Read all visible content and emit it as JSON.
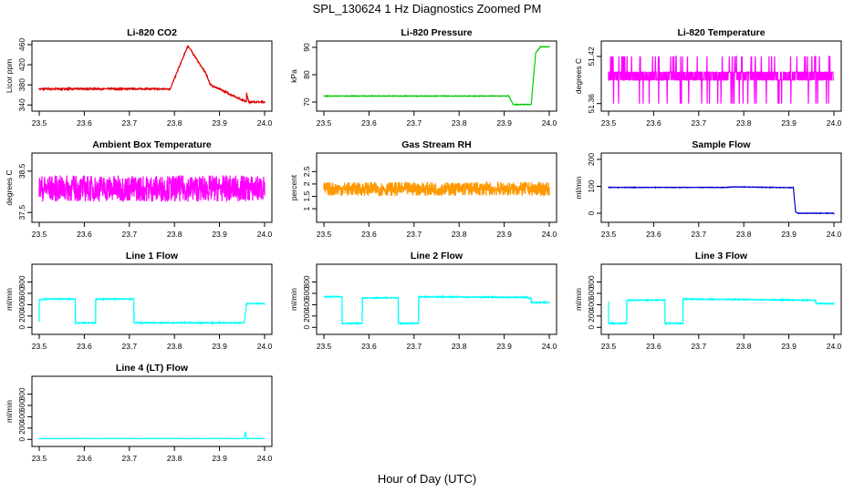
{
  "figure": {
    "title": "SPL_130624 1 Hz Diagnostics Zoomed PM",
    "xlabel": "Hour of Day (UTC)"
  },
  "chart_data": [
    {
      "type": "line",
      "title": "Li-820 CO2",
      "ylabel": "Licor ppm",
      "color": "#dd0000",
      "xlim": [
        23.5,
        24.0
      ],
      "ylim": [
        335,
        460
      ],
      "xticks": [
        23.5,
        23.6,
        23.7,
        23.8,
        23.9,
        24.0
      ],
      "yticks": [
        340,
        380,
        420,
        460
      ],
      "noise": 1.5,
      "x": [
        23.5,
        23.79,
        23.79,
        23.83,
        23.83,
        23.87,
        23.87,
        23.88,
        23.88,
        23.955,
        23.96,
        23.96,
        23.965,
        23.965,
        24.0
      ],
      "y": [
        372,
        372,
        371,
        458,
        458,
        402,
        402,
        380,
        380,
        348,
        347,
        364,
        345,
        346,
        346
      ]
    },
    {
      "type": "line",
      "title": "Li-820 Pressure",
      "ylabel": "kPa",
      "color": "#00cc00",
      "xlim": [
        23.5,
        24.0
      ],
      "ylim": [
        68,
        91
      ],
      "xticks": [
        23.5,
        23.6,
        23.7,
        23.8,
        23.9,
        24.0
      ],
      "yticks": [
        70,
        80,
        90
      ],
      "noise": 0.1,
      "x": [
        23.5,
        23.91,
        23.92,
        23.96,
        23.965,
        23.97,
        23.98,
        24.0
      ],
      "y": [
        72.2,
        72.2,
        69.1,
        69.1,
        79,
        88,
        90.2,
        90.2
      ]
    },
    {
      "type": "line",
      "title": "Li-820 Temperature",
      "ylabel": "degrees C",
      "color": "#ff00ff",
      "xlim": [
        23.5,
        24.0
      ],
      "ylim": [
        51.355,
        51.435
      ],
      "xticks": [
        23.5,
        23.6,
        23.7,
        23.8,
        23.9,
        24.0
      ],
      "yticks": [
        51.36,
        51.42
      ],
      "noise": 0,
      "x": [
        23.5,
        24.0
      ],
      "y": [
        51.385,
        51.395
      ]
    },
    {
      "type": "line",
      "title": "Ambient Box Temperature",
      "ylabel": "degrees C",
      "color": "#ff00ff",
      "xlim": [
        23.5,
        24.0
      ],
      "ylim": [
        37.35,
        38.85
      ],
      "xticks": [
        23.5,
        23.6,
        23.7,
        23.8,
        23.9,
        24.0
      ],
      "yticks": [
        37.5,
        38.5
      ],
      "noise": 0.32,
      "x": [
        23.5,
        24.0
      ],
      "y": [
        38.08,
        38.08
      ]
    },
    {
      "type": "line",
      "title": "Gas Stream RH",
      "ylabel": "percent",
      "color": "#ff9900",
      "xlim": [
        23.5,
        24.0
      ],
      "ylim": [
        0.6,
        3.1
      ],
      "xticks": [
        23.5,
        23.6,
        23.7,
        23.8,
        23.9,
        24.0
      ],
      "yticks": [
        1.0,
        1.5,
        2.0,
        2.5
      ],
      "noise": 0.28,
      "x": [
        23.5,
        24.0
      ],
      "y": [
        1.8,
        1.8
      ]
    },
    {
      "type": "line",
      "title": "Sample Flow",
      "ylabel": "ml/min",
      "color": "#0000cc",
      "xlim": [
        23.5,
        24.0
      ],
      "ylim": [
        -20,
        210
      ],
      "xticks": [
        23.5,
        23.6,
        23.7,
        23.8,
        23.9,
        24.0
      ],
      "yticks": [
        0,
        100,
        200
      ],
      "noise": 1,
      "x": [
        23.5,
        23.76,
        23.78,
        23.91,
        23.915,
        23.92,
        24.0
      ],
      "y": [
        96,
        96,
        98,
        95,
        5,
        0,
        0
      ]
    },
    {
      "type": "line",
      "title": "Line 1 Flow",
      "ylabel": "ml/min",
      "color": "#00ffff",
      "xlim": [
        23.5,
        24.0
      ],
      "ylim": [
        -60,
        1050
      ],
      "xticks": [
        23.5,
        23.6,
        23.7,
        23.8,
        23.9,
        24.0
      ],
      "yticks": [
        0,
        200,
        400,
        600,
        800
      ],
      "noise": 8,
      "x": [
        23.5,
        23.5,
        23.51,
        23.58,
        23.58,
        23.625,
        23.625,
        23.71,
        23.71,
        23.955,
        23.955,
        23.96,
        23.96,
        24.0
      ],
      "y": [
        100,
        480,
        500,
        500,
        80,
        80,
        500,
        500,
        80,
        80,
        80,
        420,
        420,
        420
      ]
    },
    {
      "type": "line",
      "title": "Line 2 Flow",
      "ylabel": "ml/min",
      "color": "#00ffff",
      "xlim": [
        23.5,
        24.0
      ],
      "ylim": [
        -60,
        1050
      ],
      "xticks": [
        23.5,
        23.6,
        23.7,
        23.8,
        23.9,
        24.0
      ],
      "yticks": [
        0,
        200,
        400,
        600,
        800
      ],
      "noise": 8,
      "x": [
        23.5,
        23.54,
        23.54,
        23.585,
        23.585,
        23.665,
        23.665,
        23.71,
        23.71,
        23.95,
        23.96,
        23.96,
        24.0
      ],
      "y": [
        540,
        540,
        70,
        70,
        520,
        520,
        70,
        70,
        540,
        530,
        510,
        440,
        440
      ]
    },
    {
      "type": "line",
      "title": "Line 3 Flow",
      "ylabel": "ml/min",
      "color": "#00ffff",
      "xlim": [
        23.5,
        24.0
      ],
      "ylim": [
        -60,
        1050
      ],
      "xticks": [
        23.5,
        23.6,
        23.7,
        23.8,
        23.9,
        24.0
      ],
      "yticks": [
        0,
        200,
        400,
        600,
        800
      ],
      "noise": 8,
      "x": [
        23.5,
        23.5,
        23.505,
        23.54,
        23.54,
        23.625,
        23.625,
        23.665,
        23.665,
        23.95,
        23.96,
        23.96,
        24.0
      ],
      "y": [
        450,
        70,
        70,
        70,
        480,
        480,
        70,
        70,
        500,
        480,
        470,
        420,
        420
      ]
    },
    {
      "type": "line",
      "title": "Line 4 (LT) Flow",
      "ylabel": "ml/min",
      "color": "#00ffff",
      "xlim": [
        23.5,
        24.0
      ],
      "ylim": [
        -60,
        1050
      ],
      "xticks": [
        23.5,
        23.6,
        23.7,
        23.8,
        23.9,
        24.0
      ],
      "yticks": [
        0,
        200,
        400,
        600,
        800
      ],
      "noise": 2,
      "x": [
        23.5,
        23.955,
        23.957,
        23.96,
        23.962,
        24.0
      ],
      "y": [
        15,
        15,
        140,
        15,
        15,
        15
      ]
    }
  ]
}
